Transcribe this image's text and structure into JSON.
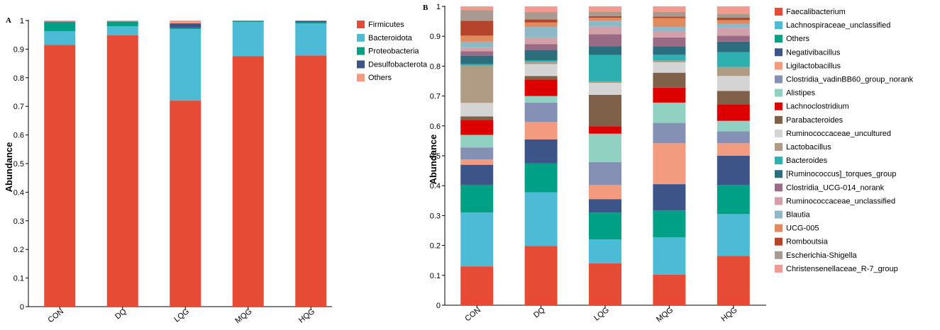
{
  "chart_data": [
    {
      "type": "bar",
      "stacked": true,
      "panel_label": "A",
      "ylabel": "Abundance",
      "ylim": [
        0,
        1
      ],
      "yticks": [
        "0",
        "0.1",
        "0.2",
        "0.3",
        "0.4",
        "0.5",
        "0.6",
        "0.7",
        "0.8",
        "0.9",
        "1"
      ],
      "categories": [
        "CON",
        "DQ",
        "LQG",
        "MQG",
        "HQG"
      ],
      "legend_position": "right",
      "series": [
        {
          "name": "Firmicutes",
          "color": "#e64b35",
          "values": [
            0.915,
            0.948,
            0.72,
            0.875,
            0.878
          ]
        },
        {
          "name": "Bacteroidota",
          "color": "#4dbbd5",
          "values": [
            0.048,
            0.032,
            0.25,
            0.12,
            0.112
          ]
        },
        {
          "name": "Proteobacteria",
          "color": "#00a087",
          "values": [
            0.032,
            0.016,
            0.005,
            0.002,
            0.004
          ]
        },
        {
          "name": "Desulfobacterota",
          "color": "#3c5488",
          "values": [
            0.001,
            0.001,
            0.015,
            0.002,
            0.005
          ]
        },
        {
          "name": "Others",
          "color": "#f39b7f",
          "values": [
            0.004,
            0.003,
            0.01,
            0.001,
            0.001
          ]
        }
      ]
    },
    {
      "type": "bar",
      "stacked": true,
      "panel_label": "B",
      "ylabel": "Abundance",
      "ylim": [
        0,
        1
      ],
      "yticks": [
        "0",
        "0.1",
        "0.2",
        "0.3",
        "0.4",
        "0.5",
        "0.6",
        "0.7",
        "0.8",
        "0.9",
        "1"
      ],
      "categories": [
        "CON",
        "DQ",
        "LQG",
        "MQG",
        "HQG"
      ],
      "legend_position": "right",
      "series": [
        {
          "name": "Faecalibacterium",
          "color": "#e64b35",
          "values": [
            0.13,
            0.198,
            0.14,
            0.102,
            0.165
          ]
        },
        {
          "name": "Lachnospiraceae_unclassified",
          "color": "#4dbbd5",
          "values": [
            0.18,
            0.18,
            0.08,
            0.125,
            0.14
          ]
        },
        {
          "name": "Others",
          "color": "#00a087",
          "values": [
            0.093,
            0.097,
            0.09,
            0.09,
            0.097
          ]
        },
        {
          "name": "Negativibacillus",
          "color": "#3c5488",
          "values": [
            0.067,
            0.08,
            0.045,
            0.088,
            0.098
          ]
        },
        {
          "name": "Ligilactobacillus",
          "color": "#f39b7f",
          "values": [
            0.018,
            0.058,
            0.047,
            0.137,
            0.042
          ]
        },
        {
          "name": "Clostridia_vadinBB60_group_norank",
          "color": "#8491b4",
          "values": [
            0.04,
            0.065,
            0.077,
            0.068,
            0.04
          ]
        },
        {
          "name": "Alistipes",
          "color": "#91d1c2",
          "values": [
            0.042,
            0.022,
            0.095,
            0.068,
            0.035
          ]
        },
        {
          "name": "Lachnoclostridium",
          "color": "#dc0000",
          "values": [
            0.05,
            0.055,
            0.025,
            0.05,
            0.055
          ]
        },
        {
          "name": "Parabacteroides",
          "color": "#7e6148",
          "values": [
            0.012,
            0.012,
            0.105,
            0.05,
            0.045
          ]
        },
        {
          "name": "Ruminococcaceae_uncultured",
          "color": "#d4d4d4",
          "values": [
            0.045,
            0.04,
            0.04,
            0.035,
            0.05
          ]
        },
        {
          "name": "Lactobacillus",
          "color": "#b09c85",
          "values": [
            0.125,
            0.008,
            0.005,
            0.005,
            0.03
          ]
        },
        {
          "name": "Bacteroides",
          "color": "#2fb0b0",
          "values": [
            0.005,
            0.004,
            0.088,
            0.02,
            0.05
          ]
        },
        {
          "name": "[Ruminococcus]_torques_group",
          "color": "#2d6e7e",
          "values": [
            0.028,
            0.035,
            0.03,
            0.028,
            0.035
          ]
        },
        {
          "name": "Clostridia_UCG-014_norank",
          "color": "#9a6b85",
          "values": [
            0.015,
            0.02,
            0.04,
            0.03,
            0.02
          ]
        },
        {
          "name": "Ruminococcaceae_unclassified",
          "color": "#d2a0a8",
          "values": [
            0.012,
            0.022,
            0.025,
            0.02,
            0.025
          ]
        },
        {
          "name": "Blautia",
          "color": "#8fb8c7",
          "values": [
            0.02,
            0.035,
            0.02,
            0.015,
            0.015
          ]
        },
        {
          "name": "UCG-005",
          "color": "#e08a5e",
          "values": [
            0.02,
            0.015,
            0.01,
            0.03,
            0.012
          ]
        },
        {
          "name": "Romboutsia",
          "color": "#b5452a",
          "values": [
            0.05,
            0.01,
            0.005,
            0.005,
            0.008
          ]
        },
        {
          "name": "Escherichia-Shigella",
          "color": "#a89a90",
          "values": [
            0.035,
            0.025,
            0.015,
            0.015,
            0.012
          ]
        },
        {
          "name": "Christensenellaceae_R-7_group",
          "color": "#f09a90",
          "values": [
            0.013,
            0.019,
            0.018,
            0.019,
            0.026
          ]
        }
      ]
    }
  ]
}
